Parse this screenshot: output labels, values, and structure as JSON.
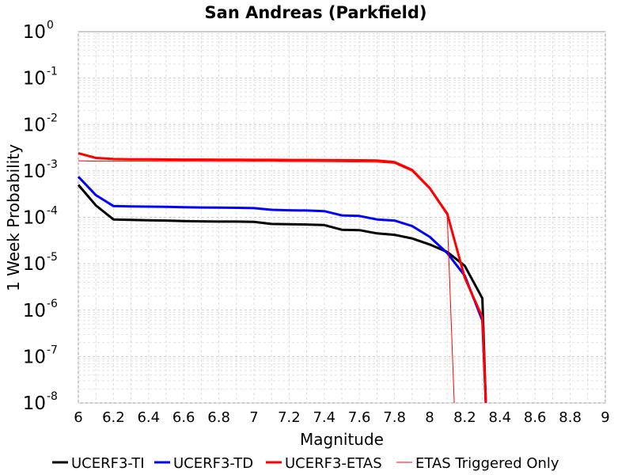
{
  "chart_data": {
    "type": "line",
    "title": "San Andreas (Parkfield)",
    "xlabel": "Magnitude",
    "ylabel": "1 Week Probability",
    "xlim": [
      6,
      9
    ],
    "ylim": [
      1e-08,
      1
    ],
    "yscale": "log",
    "grid": true,
    "legend_position": "bottom",
    "xticks": [
      "6",
      "6.2",
      "6.4",
      "6.6",
      "6.8",
      "7",
      "7.2",
      "7.4",
      "7.6",
      "7.8",
      "8",
      "8.2",
      "8.4",
      "8.6",
      "8.8",
      "9"
    ],
    "yticks": [
      {
        "base": "10",
        "exp": "0"
      },
      {
        "base": "10",
        "exp": "-1"
      },
      {
        "base": "10",
        "exp": "-2"
      },
      {
        "base": "10",
        "exp": "-3"
      },
      {
        "base": "10",
        "exp": "-4"
      },
      {
        "base": "10",
        "exp": "-5"
      },
      {
        "base": "10",
        "exp": "-6"
      },
      {
        "base": "10",
        "exp": "-7"
      },
      {
        "base": "10",
        "exp": "-8"
      }
    ],
    "series": [
      {
        "name": "UCERF3-TI",
        "color": "#000000",
        "width": 3,
        "x": [
          6.0,
          6.1,
          6.2,
          6.3,
          6.4,
          6.5,
          6.6,
          6.7,
          6.8,
          6.9,
          7.0,
          7.1,
          7.2,
          7.3,
          7.4,
          7.5,
          7.6,
          7.7,
          7.8,
          7.9,
          8.0,
          8.1,
          8.2,
          8.3,
          8.32
        ],
        "y": [
          0.0005,
          0.00018,
          9e-05,
          8.8e-05,
          8.6e-05,
          8.5e-05,
          8.3e-05,
          8.2e-05,
          8.1e-05,
          8.1e-05,
          8e-05,
          7.2e-05,
          7.1e-05,
          7e-05,
          6.8e-05,
          5.4e-05,
          5.3e-05,
          4.5e-05,
          4.2e-05,
          3.5e-05,
          2.6e-05,
          1.8e-05,
          9e-06,
          1.8e-06,
          1e-08
        ]
      },
      {
        "name": "UCERF3-TD",
        "color": "#0000ff",
        "width": 3,
        "x": [
          6.0,
          6.1,
          6.2,
          6.3,
          6.4,
          6.5,
          6.6,
          6.7,
          6.8,
          6.9,
          7.0,
          7.1,
          7.2,
          7.3,
          7.4,
          7.5,
          7.6,
          7.7,
          7.8,
          7.9,
          8.0,
          8.1,
          8.2,
          8.3,
          8.32
        ],
        "y": [
          0.00075,
          0.0003,
          0.000175,
          0.000172,
          0.00017,
          0.000168,
          0.000165,
          0.000163,
          0.000162,
          0.00016,
          0.000158,
          0.000145,
          0.000142,
          0.00014,
          0.000136,
          0.00011,
          0.000107,
          9e-05,
          8.5e-05,
          6.5e-05,
          3.8e-05,
          1.7e-05,
          5.5e-06,
          6e-07,
          1e-08
        ]
      },
      {
        "name": "UCERF3-ETAS",
        "color": "#ff0000",
        "width": 3,
        "x": [
          6.0,
          6.1,
          6.2,
          6.3,
          6.4,
          6.5,
          6.6,
          6.7,
          6.8,
          6.9,
          7.0,
          7.1,
          7.2,
          7.3,
          7.4,
          7.5,
          7.6,
          7.7,
          7.8,
          7.9,
          8.0,
          8.1,
          8.2,
          8.3,
          8.32
        ],
        "y": [
          0.0024,
          0.0019,
          0.0018,
          0.00178,
          0.00177,
          0.00176,
          0.00175,
          0.00175,
          0.00174,
          0.00174,
          0.00173,
          0.00173,
          0.00172,
          0.00172,
          0.00171,
          0.0017,
          0.00169,
          0.00167,
          0.00155,
          0.00105,
          0.00043,
          0.00012,
          5e-06,
          7e-07,
          1e-08
        ]
      },
      {
        "name": "ETAS Triggered Only",
        "color": "#ff0000",
        "width": 1,
        "x": [
          6.0,
          6.1,
          6.2,
          6.3,
          6.4,
          6.5,
          6.6,
          6.7,
          6.8,
          6.9,
          7.0,
          7.1,
          7.2,
          7.3,
          7.4,
          7.5,
          7.6,
          7.7,
          7.8,
          7.9,
          8.0,
          8.1,
          8.14
        ],
        "y": [
          0.00165,
          0.00162,
          0.00162,
          0.00162,
          0.00162,
          0.00161,
          0.00161,
          0.00161,
          0.0016,
          0.0016,
          0.0016,
          0.0016,
          0.00159,
          0.00159,
          0.00158,
          0.00157,
          0.00156,
          0.00154,
          0.00145,
          0.00098,
          0.0004,
          0.00011,
          1e-08
        ]
      }
    ]
  }
}
